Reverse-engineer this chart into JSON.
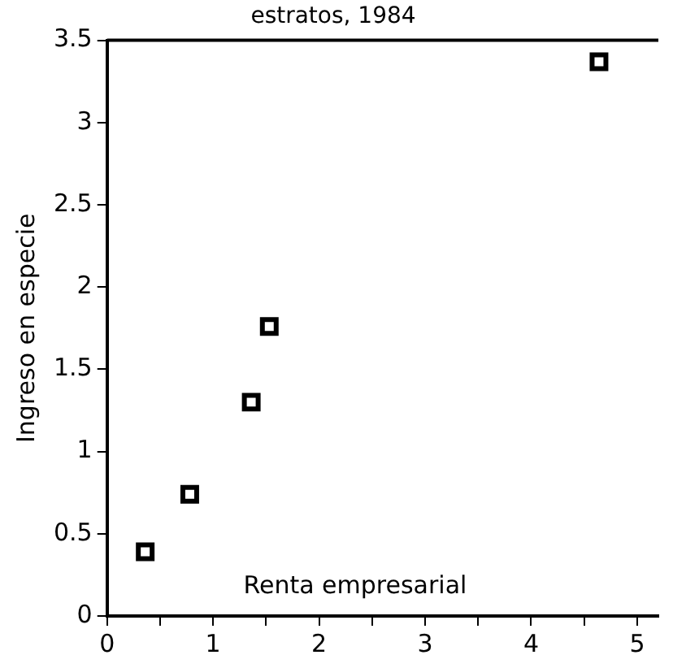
{
  "chart_data": {
    "type": "scatter",
    "title": "estratos, 1984",
    "ylabel": "Ingreso en especie",
    "annotations": [
      "Renta empresarial"
    ],
    "x": [
      0.36,
      0.78,
      1.36,
      1.53,
      4.64
    ],
    "series": [
      {
        "color": "#000000",
        "values": [
          0.39,
          0.74,
          1.3,
          1.76,
          3.37
        ]
      }
    ],
    "xlim": [
      0,
      5.2
    ],
    "xticks": [
      0,
      {
        "value": 0.5,
        "label": null
      },
      1,
      {
        "value": 1.5,
        "label": null
      },
      2,
      {
        "value": 2.5,
        "label": null
      },
      3,
      {
        "value": 3.5,
        "label": null
      },
      4,
      {
        "value": 4.5,
        "label": null
      },
      5
    ],
    "ylim": [
      0,
      3.5
    ],
    "yticks": [
      0,
      0.5,
      1,
      1.5,
      2,
      2.5,
      3,
      3.5
    ],
    "grid": false,
    "legend": false,
    "marker": "square"
  }
}
